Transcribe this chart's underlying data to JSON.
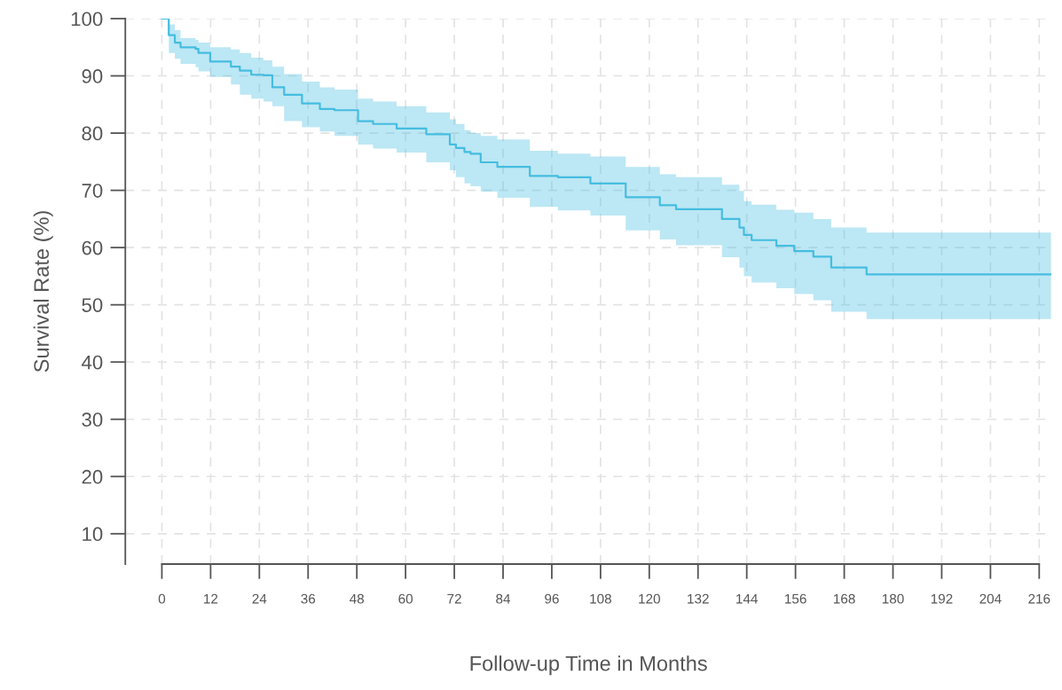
{
  "chart_data": {
    "type": "step",
    "xlabel": "Follow-up Time in Months",
    "ylabel": "Survival Rate (%)",
    "xlim": [
      -9,
      219
    ],
    "ylim": [
      4.7,
      100
    ],
    "xticks": [
      0,
      12,
      24,
      36,
      48,
      60,
      72,
      84,
      96,
      108,
      120,
      132,
      144,
      156,
      168,
      180,
      192,
      204,
      216
    ],
    "yticks": [
      10,
      20,
      30,
      40,
      50,
      60,
      70,
      80,
      90,
      100
    ],
    "grid": true,
    "line_style": "solid",
    "marker": "none",
    "series": [
      {
        "color": "#45bde0",
        "x": [
          0,
          1.7,
          3.2,
          4.6,
          8.3,
          9,
          11.9,
          17,
          19.2,
          22,
          25,
          27.2,
          30.1,
          34.5,
          38.9,
          42.5,
          48.3,
          52,
          57.8,
          65.1,
          70.9,
          72.4,
          74.5,
          76,
          78.5,
          82.6,
          90.6,
          97.5,
          105.5,
          114.2,
          122.6,
          126.6,
          137.9,
          142.2,
          143.3,
          145.2,
          151.3,
          155.7,
          160.4,
          164.8,
          173.5,
          218.9
        ],
        "values": [
          100,
          97.1,
          95.8,
          95.0,
          94.7,
          94.0,
          92.5,
          91.6,
          90.9,
          90.2,
          90.1,
          88.0,
          86.7,
          85.2,
          84.2,
          84.0,
          82.1,
          81.6,
          80.8,
          79.8,
          78.0,
          77.4,
          76.7,
          76.4,
          74.9,
          74.1,
          72.5,
          72.3,
          71.2,
          68.8,
          67.4,
          66.7,
          65.0,
          63.5,
          62.2,
          61.3,
          60.3,
          59.4,
          58.4,
          56.5,
          55.3,
          55.3
        ],
        "lower": [
          100,
          94,
          93,
          92.1,
          91.5,
          90.8,
          89.8,
          88.5,
          86.7,
          86.0,
          85.5,
          84.7,
          82.1,
          81.0,
          80.3,
          79.5,
          78.0,
          77.3,
          76.6,
          74.9,
          73.5,
          72.3,
          71.2,
          70.7,
          69.8,
          68.7,
          67.1,
          66.5,
          65.6,
          63.0,
          61.4,
          60.4,
          58.3,
          56.5,
          55.0,
          53.9,
          52.9,
          51.9,
          50.8,
          48.8,
          47.5,
          47.5
        ],
        "upper": [
          100,
          99,
          98,
          96.6,
          96.3,
          95.8,
          95.0,
          94.6,
          94.0,
          93.2,
          92.7,
          91.6,
          90.3,
          89.0,
          88.0,
          87.6,
          86.0,
          85.5,
          84.7,
          83.6,
          82.4,
          81.6,
          80.5,
          80.0,
          79.5,
          78.9,
          76.9,
          76.4,
          75.9,
          74.1,
          72.8,
          72.3,
          71.0,
          69.9,
          68.1,
          67.5,
          66.6,
          66.1,
          65.0,
          63.5,
          62.6,
          62.6
        ]
      }
    ]
  }
}
